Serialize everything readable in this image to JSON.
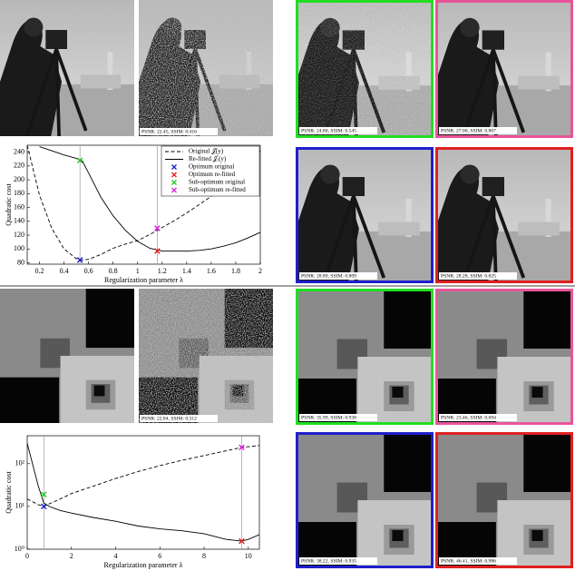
{
  "panels": [
    {
      "caption": "PSNR: 22.45, SSIM: 0.416"
    },
    {
      "caption": "PSNR: 24.80, SSIM: 0.545"
    },
    {
      "caption": "PSNR: 27.00, SSIM: 0.807"
    },
    {
      "caption": "PSNR: 28.89, SSIM: 0.809"
    },
    {
      "caption": "PSNR: 28.28, SSIM: 0.825"
    },
    {
      "caption": "PSNR: 22.84, SSIM: 0.312"
    },
    {
      "caption": "PSNR: 35.99, SSIM: 0.938"
    },
    {
      "caption": "PSNR: 23.46, SSIM: 0.694"
    },
    {
      "caption": "PSNR: 38.22, SSIM: 0.935"
    },
    {
      "caption": "PSNR: 46.41, SSIM: 0.986"
    }
  ],
  "chart_data": [
    {
      "type": "line",
      "xlabel": "Regularization parameter λ",
      "ylabel": "Quadratic cost",
      "x": [
        0.1,
        0.2,
        0.3,
        0.4,
        0.5,
        0.55,
        0.6,
        0.7,
        0.8,
        0.9,
        1.0,
        1.1,
        1.2,
        1.3,
        1.4,
        1.5,
        1.6,
        1.7,
        1.8,
        1.9,
        2.0
      ],
      "series": [
        {
          "name": "Original 𝒥(y)",
          "color": "#000000",
          "dash": true,
          "values": [
            250,
            178,
            130,
            100,
            86,
            84,
            85,
            92,
            101,
            107,
            112,
            121,
            131,
            141,
            152,
            164,
            176,
            189,
            211,
            226,
            242
          ]
        },
        {
          "name": "Re-fitted 𝒥ᵣ(y)",
          "color": "#000000",
          "dash": false,
          "values": [
            null,
            248,
            242,
            236,
            231,
            227,
            210,
            175,
            148,
            127,
            111,
            101,
            97,
            97,
            97,
            98,
            100,
            104,
            109,
            116,
            124
          ]
        }
      ],
      "points": [
        {
          "name": "Optimum original",
          "color": "#1f1fcc",
          "x": 0.53,
          "y": 84
        },
        {
          "name": "Optimum re-fitted",
          "color": "#e02020",
          "x": 1.16,
          "y": 97
        },
        {
          "name": "Sub-optimum original",
          "color": "#22cc22",
          "x": 0.53,
          "y": 228
        },
        {
          "name": "Sub-optimum re-fitted",
          "color": "#e020e0",
          "x": 1.16,
          "y": 130
        }
      ],
      "vlines": [
        0.53,
        1.16
      ],
      "xlim": [
        0.1,
        2.0
      ],
      "xticks": [
        0.2,
        0.4,
        0.6,
        0.8,
        1,
        1.2,
        1.4,
        1.6,
        1.8,
        2
      ],
      "ylim": [
        78,
        250
      ],
      "yticks": [
        80,
        100,
        120,
        140,
        160,
        180,
        200,
        220,
        240
      ],
      "legend": "upper right"
    },
    {
      "type": "line",
      "xlabel": "Regularization parameter λ",
      "ylabel": "Quadratic cost",
      "log_y": true,
      "x": [
        0,
        0.5,
        0.75,
        1,
        1.5,
        2,
        3,
        4,
        5,
        6,
        7,
        8,
        9,
        9.7,
        10,
        10.5
      ],
      "series": [
        {
          "color": "#000000",
          "dash": true,
          "values": [
            15,
            11,
            10,
            11.5,
            15,
            20,
            30,
            45,
            65,
            90,
            120,
            155,
            200,
            240,
            250,
            265
          ]
        },
        {
          "color": "#000000",
          "dash": false,
          "values": [
            300,
            30,
            12,
            10,
            8,
            7,
            5.5,
            4.5,
            3.5,
            3,
            2.7,
            2.3,
            1.7,
            1.55,
            1.7,
            2.2
          ]
        }
      ],
      "points": [
        {
          "color": "#1f1fcc",
          "x": 0.75,
          "y": 10
        },
        {
          "color": "#22cc22",
          "x": 0.75,
          "y": 19
        },
        {
          "color": "#e02020",
          "x": 9.7,
          "y": 1.55
        },
        {
          "color": "#e020e0",
          "x": 9.7,
          "y": 240
        }
      ],
      "vlines": [
        0.75,
        9.7
      ],
      "xlim": [
        0,
        10.5
      ],
      "xticks": [
        0,
        2,
        4,
        6,
        8,
        10
      ],
      "ylim": [
        1,
        450
      ],
      "yticks": [
        {
          "value": 1,
          "label": "10⁰"
        },
        {
          "value": 10,
          "label": "10¹"
        },
        {
          "value": 100,
          "label": "10²"
        }
      ]
    }
  ]
}
